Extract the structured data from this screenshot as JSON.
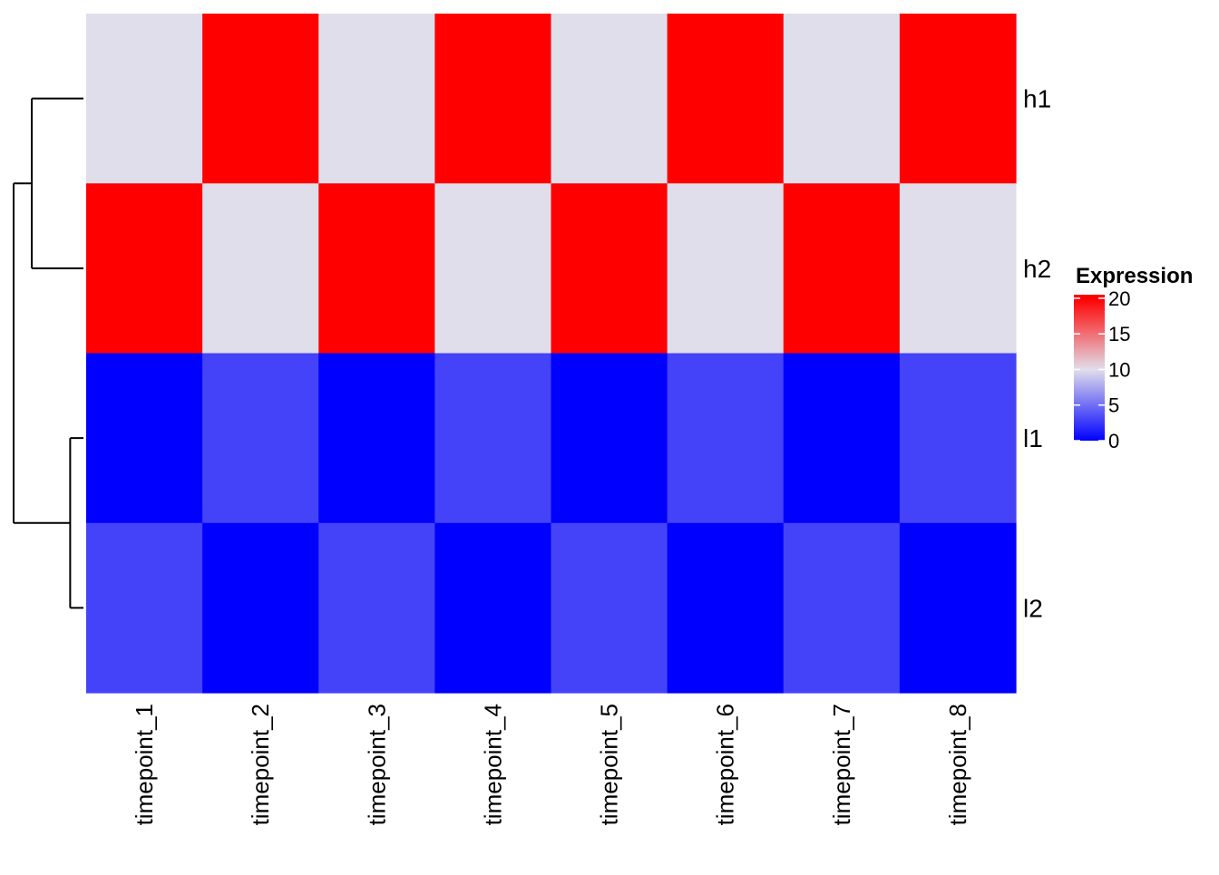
{
  "chart_data": {
    "type": "heatmap",
    "rows": [
      "h1",
      "h2",
      "l1",
      "l2"
    ],
    "columns": [
      "timepoint_1",
      "timepoint_2",
      "timepoint_3",
      "timepoint_4",
      "timepoint_5",
      "timepoint_6",
      "timepoint_7",
      "timepoint_8"
    ],
    "values": [
      [
        10,
        20,
        10,
        20,
        10,
        20,
        10,
        20
      ],
      [
        20,
        10,
        20,
        10,
        20,
        10,
        20,
        10
      ],
      [
        0,
        3,
        0,
        3,
        0,
        3,
        0,
        3
      ],
      [
        3,
        0,
        3,
        0,
        3,
        0,
        3,
        0
      ]
    ],
    "legend": {
      "title": "Expression",
      "ticks": [
        0,
        5,
        10,
        15,
        20
      ],
      "tick_labels": [
        "0",
        "5",
        "10",
        "15",
        "20"
      ],
      "range": [
        0,
        20.5
      ],
      "placement": "right"
    },
    "color_scale": {
      "low": "#0000FF",
      "mid": "#E1DEEB",
      "high": "#FF0000",
      "midpoint": 10
    },
    "row_dendrogram": {
      "merges": [
        {
          "left": "h1",
          "right": "h2",
          "height": 0.74
        },
        {
          "left": "l1",
          "right": "l2",
          "height": 0.19
        },
        {
          "left": "cluster_h",
          "right": "cluster_l",
          "height": 1.0
        }
      ]
    },
    "xlabel": "",
    "ylabel": ""
  }
}
